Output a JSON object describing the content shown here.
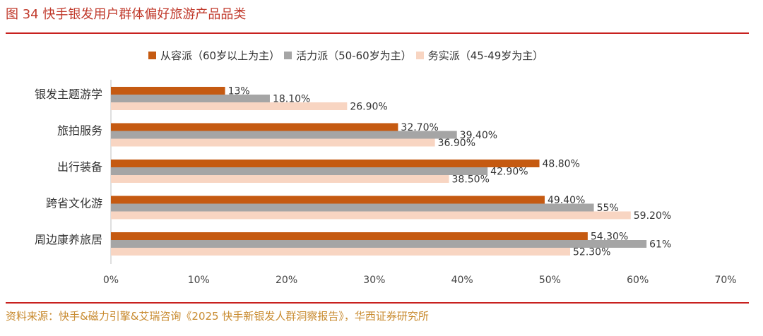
{
  "header": {
    "figure_title": "图 34 快手银发用户群体偏好旅游产品品类"
  },
  "footer": {
    "source": "资料来源：快手&磁力引擎&艾瑞咨询《2025 快手新银发人群洞察报告》，华西证券研究所"
  },
  "colors": {
    "series1": "#c55a11",
    "series2": "#a5a5a5",
    "series3": "#f8d5c2",
    "accent_red": "#c8211f"
  },
  "chart_data": {
    "type": "bar",
    "orientation": "horizontal",
    "title": "",
    "categories": [
      "银发主题游学",
      "旅拍服务",
      "出行装备",
      "跨省文化游",
      "周边康养旅居"
    ],
    "series": [
      {
        "name": "从容派（60岁以上为主）",
        "values": [
          13,
          32.7,
          48.8,
          49.4,
          54.3
        ],
        "labels": [
          "13%",
          "32.70%",
          "48.80%",
          "49.40%",
          "54.30%"
        ]
      },
      {
        "name": "活力派（50-60岁为主）",
        "values": [
          18.1,
          39.4,
          42.9,
          55,
          61
        ],
        "labels": [
          "18.10%",
          "39.40%",
          "42.90%",
          "55%",
          "61%"
        ]
      },
      {
        "name": "务实派（45-49岁为主）",
        "values": [
          26.9,
          36.9,
          38.5,
          59.2,
          52.3
        ],
        "labels": [
          "26.90%",
          "36.90%",
          "38.50%",
          "59.20%",
          "52.30%"
        ]
      }
    ],
    "xlim": [
      0,
      70
    ],
    "xticks": [
      0,
      10,
      20,
      30,
      40,
      50,
      60,
      70
    ],
    "xtick_labels": [
      "0%",
      "10%",
      "20%",
      "30%",
      "40%",
      "50%",
      "60%",
      "70%"
    ],
    "xlabel": "",
    "ylabel": "",
    "grid": false,
    "legend_position": "top"
  }
}
